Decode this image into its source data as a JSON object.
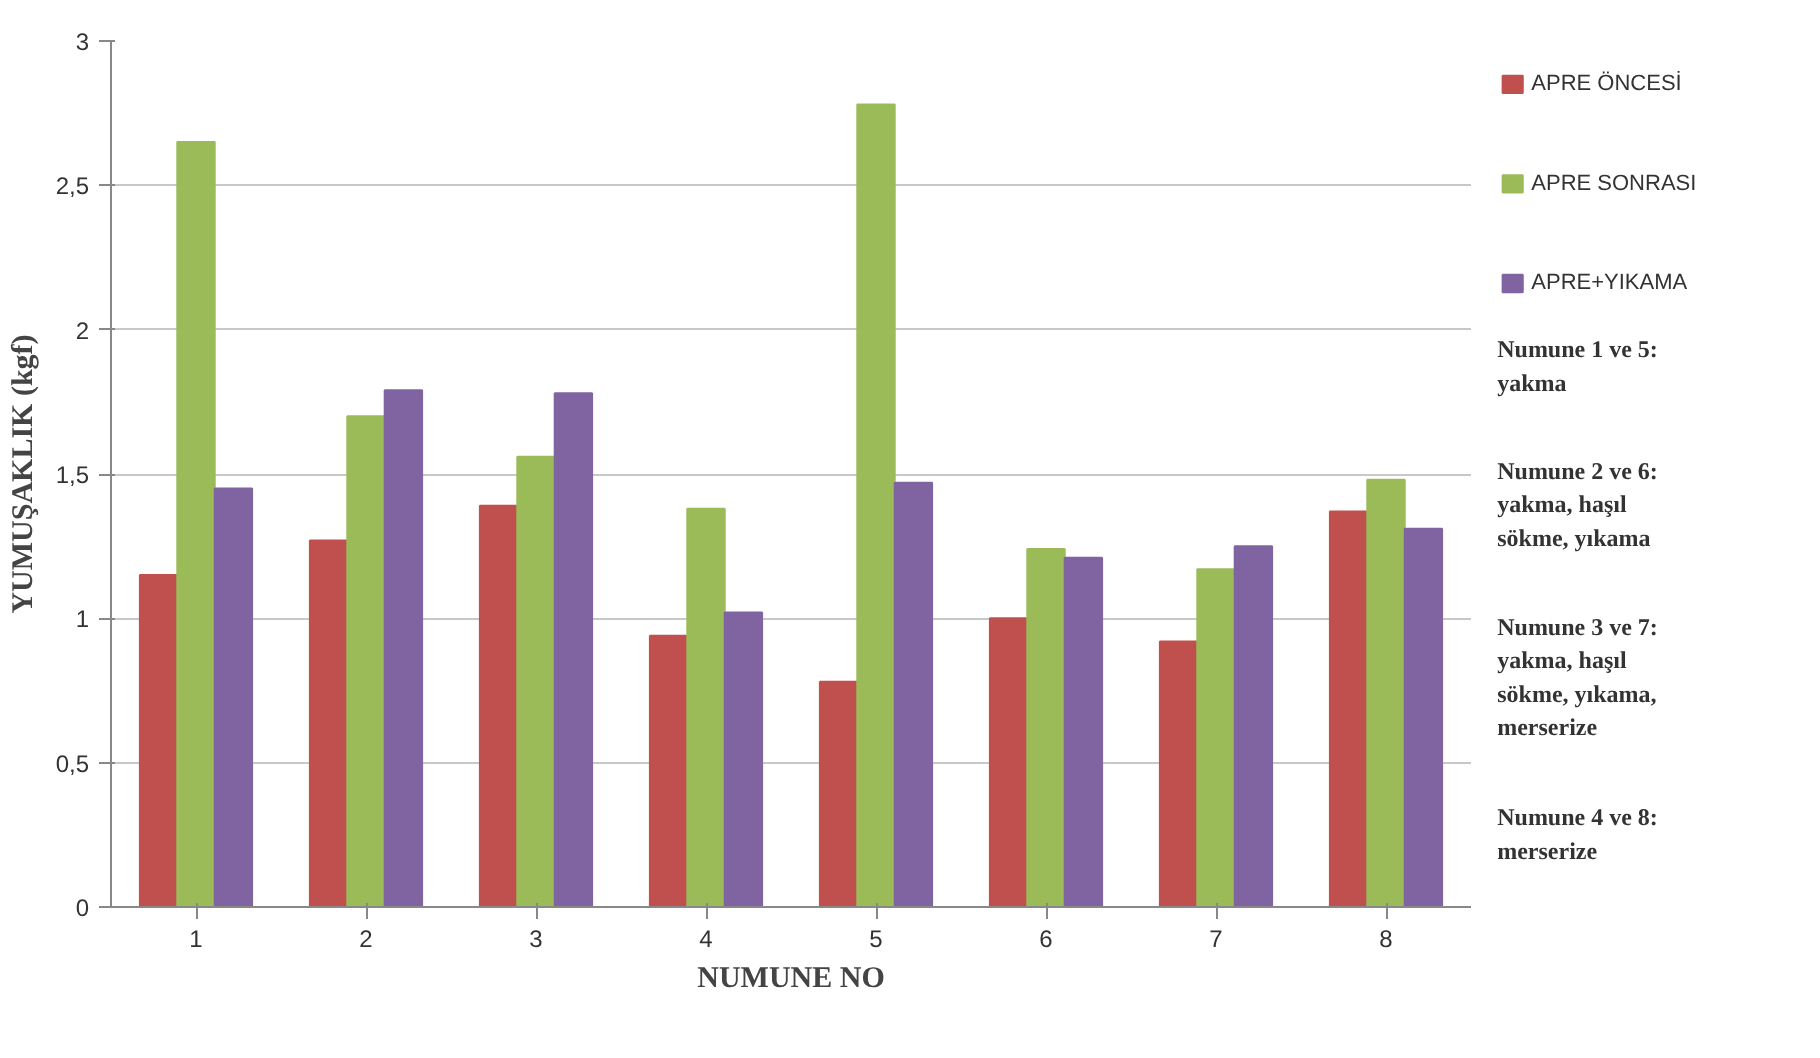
{
  "chart_data": {
    "type": "bar",
    "xlabel": "NUMUNE NO",
    "ylabel": "YUMUŞAKLIK (kgf)",
    "categories": [
      "1",
      "2",
      "3",
      "4",
      "5",
      "6",
      "7",
      "8"
    ],
    "series": [
      {
        "name": "APRE ÖNCESİ",
        "color": "#c0504d",
        "values": [
          1.15,
          1.27,
          1.39,
          0.94,
          0.78,
          1.0,
          0.92,
          1.37
        ]
      },
      {
        "name": "APRE SONRASI",
        "color": "#9bbb59",
        "values": [
          2.65,
          1.7,
          1.56,
          1.38,
          2.78,
          1.24,
          1.17,
          1.48
        ]
      },
      {
        "name": "APRE+YIKAMA",
        "color": "#8064a2",
        "values": [
          1.45,
          1.79,
          1.78,
          1.02,
          1.47,
          1.21,
          1.25,
          1.31
        ]
      }
    ],
    "ylim": [
      0,
      3
    ],
    "yticks": [
      0,
      {
        "value": 0.5,
        "label": "0,5"
      },
      1,
      {
        "value": 1.5,
        "label": "1,5"
      },
      2,
      {
        "value": 2.5,
        "label": "2,5"
      },
      3
    ],
    "grid": "y",
    "legend": "top right",
    "annotations": [
      "Numune 1 ve 5: yakma",
      "Numune 2 ve 6: yakma, haşıl sökme, yıkama",
      "Numune 3 ve 7: yakma, haşıl sökme, yıkama, merserize",
      "Numune 4 ve 8: merserize"
    ]
  }
}
